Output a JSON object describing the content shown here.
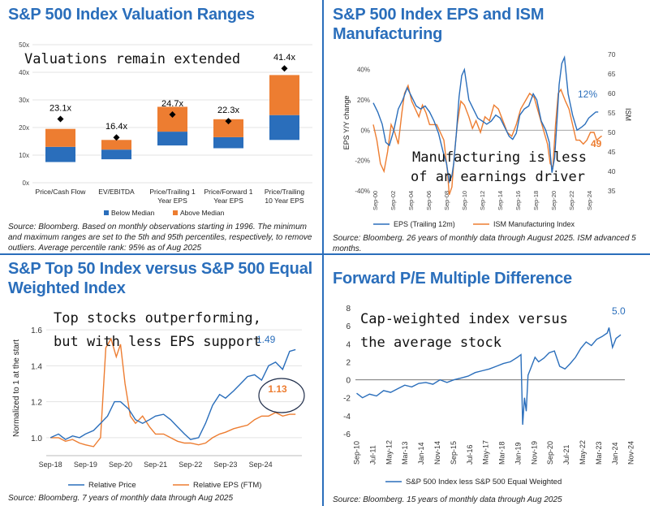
{
  "colors": {
    "blue": "#2a6ebb",
    "orange": "#ed7d31",
    "title": "#2a6ebb"
  },
  "panels": [
    {
      "title": "S&P 500 Index Valuation Ranges",
      "annotation": "Valuations remain extended",
      "source": "Source: Bloomberg. Based on monthly observations starting in 1996. The minimum and maximum ranges are set to the 5th and 95th percentiles, respectively, to remove outliers. Average percentile rank: 95% as of Aug 2025"
    },
    {
      "title": "S&P 500 Index EPS and ISM Manufacturing",
      "annotation": "Manufacturing is less of an earnings driver",
      "source": "Source: Bloomberg. 26 years of monthly data through August 2025. ISM advanced 5 months."
    },
    {
      "title": "S&P Top 50 Index versus S&P 500 Equal Weighted Index",
      "annotation": "Top stocks outperforming, but with less EPS support",
      "source": "Source: Bloomberg. 7 years of monthly data through Aug 2025"
    },
    {
      "title": "Forward P/E Multiple Difference",
      "annotation": "Cap-weighted index versus the average stock",
      "source": "Source: Bloomberg. 15 years of monthly data through Aug 2025"
    }
  ],
  "chart_data": [
    {
      "type": "bar",
      "title": "S&P 500 Index Valuation Ranges",
      "categories": [
        "Price/Cash Flow",
        "EV/EBITDA",
        "Price/Trailing 1 Year EPS",
        "Price/Forward 1 Year EPS",
        "Price/Trailing 10 Year EPS"
      ],
      "category_lines": [
        [
          "Price/Cash Flow"
        ],
        [
          "EV/EBITDA"
        ],
        [
          "Price/Trailing 1",
          "Year EPS"
        ],
        [
          "Price/Forward 1",
          "Year EPS"
        ],
        [
          "Price/Trailing",
          "10 Year EPS"
        ]
      ],
      "series": [
        {
          "name": "Below Median",
          "color": "#2a6ebb",
          "low": [
            7.5,
            8.5,
            13.5,
            12.5,
            15.5
          ],
          "high": [
            13,
            12,
            18.5,
            16.5,
            24.5
          ]
        },
        {
          "name": "Above Median",
          "color": "#ed7d31",
          "low": [
            13,
            12,
            18.5,
            16.5,
            24.5
          ],
          "high": [
            19.5,
            15.5,
            27.5,
            23,
            39
          ]
        }
      ],
      "current": [
        23.1,
        16.4,
        24.7,
        22.3,
        41.4
      ],
      "current_labels": [
        "23.1x",
        "16.4x",
        "24.7x",
        "22.3x",
        "41.4x"
      ],
      "yticks": [
        0,
        10,
        20,
        30,
        40,
        50
      ],
      "ytick_labels": [
        "0x",
        "10x",
        "20x",
        "30x",
        "40x",
        "50x"
      ],
      "ylim": [
        0,
        50
      ],
      "legend": "bottom"
    },
    {
      "type": "line",
      "title": "S&P 500 Index EPS and ISM Manufacturing",
      "ylabel": "EPS Y/Y change",
      "y2label": "ISM",
      "ylim": [
        -40,
        50
      ],
      "y2lim": [
        35,
        70
      ],
      "yticks": [
        -40,
        -30,
        -20,
        -10,
        0,
        10,
        20,
        30,
        40,
        50
      ],
      "ytick_labels": [
        "-40%",
        "",
        "-20%",
        "",
        "0%",
        "",
        "20%",
        "",
        "40%",
        ""
      ],
      "y2ticks": [
        35,
        40,
        45,
        50,
        55,
        60,
        65,
        70
      ],
      "xlabels": [
        "Sep-00",
        "Sep-02",
        "Sep-04",
        "Sep-06",
        "Sep-08",
        "Sep-10",
        "Sep-12",
        "Sep-14",
        "Sep-16",
        "Sep-18",
        "Sep-20",
        "Sep-22",
        "Sep-24"
      ],
      "series": [
        {
          "name": "EPS (Trailing 12m)",
          "color": "#2a6ebb",
          "axis": "left",
          "x": [
            2000.5,
            2001.0,
            2001.5,
            2001.9,
            2002.3,
            2002.8,
            2003.3,
            2003.8,
            2004.3,
            2004.8,
            2005.3,
            2005.8,
            2006.3,
            2006.8,
            2007.3,
            2007.8,
            2008.3,
            2008.7,
            2009.0,
            2009.3,
            2009.5,
            2009.8,
            2010.1,
            2010.4,
            2010.7,
            2011.2,
            2011.7,
            2012.2,
            2012.7,
            2013.2,
            2013.7,
            2014.2,
            2014.7,
            2015.2,
            2015.7,
            2016.1,
            2016.5,
            2016.9,
            2017.4,
            2017.9,
            2018.4,
            2018.8,
            2019.3,
            2019.8,
            2020.2,
            2020.5,
            2020.8,
            2021.1,
            2021.3,
            2021.6,
            2021.9,
            2022.3,
            2022.8,
            2023.3,
            2023.8,
            2024.2,
            2024.6,
            2025.0,
            2025.4,
            2025.67
          ],
          "values": [
            18,
            12,
            4,
            -8,
            -10,
            0,
            14,
            20,
            28,
            22,
            16,
            14,
            16,
            12,
            6,
            -2,
            -14,
            -22,
            -34,
            -30,
            -22,
            -2,
            22,
            36,
            40,
            20,
            14,
            8,
            6,
            4,
            6,
            10,
            8,
            2,
            -4,
            -6,
            -2,
            10,
            14,
            16,
            24,
            20,
            6,
            0,
            -8,
            -28,
            -18,
            10,
            30,
            44,
            48,
            24,
            10,
            0,
            2,
            4,
            8,
            10,
            12,
            12
          ]
        },
        {
          "name": "ISM Manufacturing Index",
          "color": "#ed7d31",
          "axis": "right",
          "x": [
            2000.5,
            2000.9,
            2001.3,
            2001.7,
            2002.1,
            2002.5,
            2002.9,
            2003.3,
            2003.7,
            2004.0,
            2004.4,
            2004.8,
            2005.2,
            2005.6,
            2006.0,
            2006.4,
            2006.8,
            2007.2,
            2007.6,
            2008.0,
            2008.4,
            2008.8,
            2009.0,
            2009.3,
            2009.6,
            2009.9,
            2010.3,
            2010.7,
            2011.2,
            2011.6,
            2012.0,
            2012.5,
            2013.0,
            2013.5,
            2014.0,
            2014.5,
            2015.0,
            2015.5,
            2016.0,
            2016.5,
            2017.0,
            2017.5,
            2018.0,
            2018.5,
            2019.0,
            2019.5,
            2020.0,
            2020.3,
            2020.6,
            2020.9,
            2021.2,
            2021.5,
            2022.0,
            2022.4,
            2022.8,
            2023.2,
            2023.6,
            2024.0,
            2024.4,
            2024.8,
            2025.2,
            2025.5,
            2026.0,
            2026.08
          ],
          "values": [
            52,
            48,
            42,
            40,
            45,
            52,
            50,
            47,
            55,
            60,
            62,
            58,
            56,
            54,
            57,
            55,
            52,
            52,
            52,
            50,
            48,
            40,
            34,
            36,
            45,
            52,
            58,
            57,
            54,
            51,
            53,
            50,
            54,
            53,
            57,
            56,
            53,
            50,
            49,
            52,
            56,
            58,
            60,
            59,
            55,
            51,
            47,
            42,
            41,
            52,
            60,
            61,
            58,
            56,
            52,
            48,
            48,
            47,
            48,
            50,
            50,
            48,
            49,
            49
          ]
        }
      ],
      "end_labels": [
        "12%",
        "49"
      ]
    },
    {
      "type": "line",
      "title": "S&P Top 50 Index versus S&P 500 Equal Weighted Index",
      "ylabel": "Normalized to 1 at the start",
      "ylim": [
        0.9,
        1.65
      ],
      "yticks": [
        1.0,
        1.2,
        1.4,
        1.6
      ],
      "ytick_labels": [
        "1.0",
        "1.2",
        "1.4",
        "1.6"
      ],
      "xlabels": [
        "Sep-18",
        "Sep-19",
        "Sep-20",
        "Sep-21",
        "Sep-22",
        "Sep-23",
        "Sep-24"
      ],
      "series": [
        {
          "name": "Relative Price",
          "color": "#2a6ebb",
          "x": [
            2018.67,
            2018.9,
            2019.1,
            2019.3,
            2019.5,
            2019.67,
            2019.9,
            2020.1,
            2020.3,
            2020.5,
            2020.67,
            2020.9,
            2021.1,
            2021.3,
            2021.5,
            2021.67,
            2021.9,
            2022.1,
            2022.3,
            2022.5,
            2022.67,
            2022.9,
            2023.1,
            2023.3,
            2023.5,
            2023.67,
            2023.9,
            2024.1,
            2024.3,
            2024.5,
            2024.7,
            2024.9,
            2025.1,
            2025.3,
            2025.5,
            2025.67
          ],
          "values": [
            1.0,
            1.02,
            0.99,
            1.01,
            1.0,
            1.02,
            1.04,
            1.08,
            1.12,
            1.2,
            1.2,
            1.16,
            1.1,
            1.08,
            1.1,
            1.12,
            1.13,
            1.1,
            1.06,
            1.02,
            0.99,
            1.0,
            1.08,
            1.18,
            1.24,
            1.22,
            1.26,
            1.3,
            1.34,
            1.35,
            1.32,
            1.4,
            1.42,
            1.38,
            1.48,
            1.49
          ]
        },
        {
          "name": "Relative EPS (FTM)",
          "color": "#ed7d31",
          "x": [
            2018.67,
            2018.9,
            2019.1,
            2019.3,
            2019.5,
            2019.67,
            2019.9,
            2020.1,
            2020.25,
            2020.4,
            2020.55,
            2020.67,
            2020.8,
            2020.95,
            2021.1,
            2021.3,
            2021.5,
            2021.67,
            2021.9,
            2022.1,
            2022.3,
            2022.5,
            2022.67,
            2022.9,
            2023.1,
            2023.3,
            2023.5,
            2023.67,
            2023.9,
            2024.1,
            2024.3,
            2024.5,
            2024.7,
            2024.9,
            2025.1,
            2025.3,
            2025.5,
            2025.67
          ],
          "values": [
            1.0,
            1.0,
            0.98,
            0.99,
            0.97,
            0.96,
            0.95,
            1.0,
            1.5,
            1.55,
            1.45,
            1.52,
            1.3,
            1.12,
            1.08,
            1.12,
            1.06,
            1.02,
            1.02,
            1.0,
            0.98,
            0.97,
            0.97,
            0.96,
            0.97,
            1.0,
            1.02,
            1.03,
            1.05,
            1.06,
            1.07,
            1.1,
            1.12,
            1.12,
            1.14,
            1.12,
            1.13,
            1.13
          ]
        }
      ],
      "end_labels": [
        "1.49",
        "1.13"
      ]
    },
    {
      "type": "line",
      "title": "Forward P/E Multiple Difference",
      "ylim": [
        -6,
        8
      ],
      "yticks": [
        -6,
        -4,
        -2,
        0,
        2,
        4,
        6,
        8
      ],
      "ytick_labels": [
        "-6",
        "-4",
        "-2",
        "0",
        "2",
        "4",
        "6",
        "8"
      ],
      "xlabels": [
        "Sep-10",
        "Jul-11",
        "May-12",
        "Mar-13",
        "Jan-14",
        "Nov-14",
        "Sep-15",
        "Jul-16",
        "May-17",
        "Mar-18",
        "Jan-19",
        "Nov-19",
        "Sep-20",
        "Jul-21",
        "May-22",
        "Mar-23",
        "Jan-24",
        "Nov-24"
      ],
      "series": [
        {
          "name": "S&P 500 Index less S&P 500 Equal Weighted",
          "color": "#2a6ebb",
          "x": [
            2010.67,
            2011.0,
            2011.4,
            2011.8,
            2012.2,
            2012.6,
            2013.0,
            2013.4,
            2013.8,
            2014.2,
            2014.6,
            2015.0,
            2015.4,
            2015.8,
            2016.2,
            2016.6,
            2017.0,
            2017.4,
            2017.8,
            2018.2,
            2018.6,
            2019.0,
            2019.4,
            2019.8,
            2020.0,
            2020.1,
            2020.2,
            2020.3,
            2020.4,
            2020.6,
            2020.8,
            2021.0,
            2021.3,
            2021.6,
            2021.9,
            2022.2,
            2022.5,
            2022.8,
            2023.1,
            2023.4,
            2023.7,
            2024.0,
            2024.3,
            2024.6,
            2024.9,
            2025.0,
            2025.2,
            2025.4,
            2025.67
          ],
          "values": [
            -1.5,
            -2.0,
            -1.6,
            -1.8,
            -1.2,
            -1.4,
            -1.0,
            -0.6,
            -0.8,
            -0.4,
            -0.3,
            -0.5,
            0.0,
            -0.3,
            0.0,
            0.2,
            0.4,
            0.8,
            1.0,
            1.2,
            1.5,
            1.8,
            2.0,
            2.5,
            2.8,
            -5.0,
            -2.0,
            -3.5,
            0.5,
            1.5,
            2.5,
            2.0,
            2.4,
            3.0,
            3.2,
            1.5,
            1.2,
            1.8,
            2.5,
            3.5,
            4.2,
            3.8,
            4.5,
            4.8,
            5.2,
            5.8,
            3.6,
            4.6,
            5.0
          ]
        }
      ],
      "end_labels": [
        "5.0"
      ]
    }
  ]
}
